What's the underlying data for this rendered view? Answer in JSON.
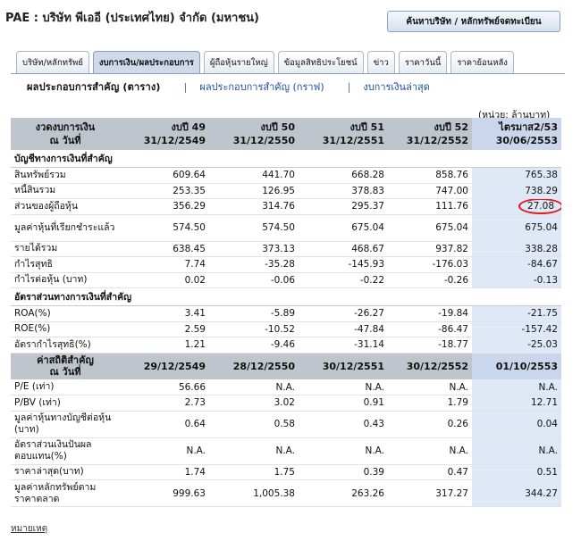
{
  "company_title": "PAE : บริษัท พีเออี (ประเทศไทย) จำกัด (มหาชน)",
  "search_button": "ค้นหาบริษัท / หลักทรัพย์จดทะเบียน",
  "tabs": [
    {
      "label": "บริษัท/หลักทรัพย์",
      "active": false
    },
    {
      "label": "งบการเงิน/ผลประกอบการ",
      "active": true
    },
    {
      "label": "ผู้ถือหุ้นรายใหญ่",
      "active": false
    },
    {
      "label": "ข้อมูลสิทธิประโยชน์",
      "active": false
    },
    {
      "label": "ข่าว",
      "active": false
    },
    {
      "label": "ราคาวันนี้",
      "active": false
    },
    {
      "label": "ราคาย้อนหลัง",
      "active": false
    }
  ],
  "subnav": {
    "current": "ผลประกอบการสำคัญ (ตาราง)",
    "sep1": "|",
    "link1": "ผลประกอบการสำคัญ (กราฟ)",
    "sep2": "|",
    "link2": "งบการเงินล่าสุด"
  },
  "unit_note": "(หน่วย: ล้านบาท)",
  "table": {
    "header": [
      {
        "l1": "งวดงบการเงิน",
        "l2": "ณ วันที่"
      },
      {
        "l1": "งบปี 49",
        "l2": "31/12/2549"
      },
      {
        "l1": "งบปี 50",
        "l2": "31/12/2550"
      },
      {
        "l1": "งบปี 51",
        "l2": "31/12/2551"
      },
      {
        "l1": "งบปี 52",
        "l2": "31/12/2552"
      },
      {
        "l1": "ไตรมาส2/53",
        "l2": "30/06/2553"
      }
    ],
    "section1": "บัญชีทางการเงินที่สำคัญ",
    "rows1": [
      {
        "label": "สินทรัพย์รวม",
        "v": [
          "609.64",
          "441.70",
          "668.28",
          "858.76",
          "765.38"
        ]
      },
      {
        "label": "หนี้สินรวม",
        "v": [
          "253.35",
          "126.95",
          "378.83",
          "747.00",
          "738.29"
        ]
      },
      {
        "label": "ส่วนของผู้ถือหุ้น",
        "v": [
          "356.29",
          "314.76",
          "295.37",
          "111.76",
          "27.08"
        ]
      },
      {
        "label": "มูลค่าหุ้นที่เรียกชำระแล้ว",
        "v": [
          "574.50",
          "574.50",
          "675.04",
          "675.04",
          "675.04"
        ]
      },
      {
        "label": "รายได้รวม",
        "v": [
          "638.45",
          "373.13",
          "468.67",
          "937.82",
          "338.28"
        ]
      },
      {
        "label": "กำไรสุทธิ",
        "v": [
          "7.74",
          "-35.28",
          "-145.93",
          "-176.03",
          "-84.67"
        ]
      },
      {
        "label": "กำไรต่อหุ้น (บาท)",
        "v": [
          "0.02",
          "-0.06",
          "-0.22",
          "-0.26",
          "-0.13"
        ]
      }
    ],
    "section2": "อัตราส่วนทางการเงินที่สำคัญ",
    "rows2": [
      {
        "label": "ROA(%)",
        "v": [
          "3.41",
          "-5.89",
          "-26.27",
          "-19.84",
          "-21.75"
        ]
      },
      {
        "label": "ROE(%)",
        "v": [
          "2.59",
          "-10.52",
          "-47.84",
          "-86.47",
          "-157.42"
        ]
      },
      {
        "label": "อัตรากำไรสุทธิ(%)",
        "v": [
          "1.21",
          "-9.46",
          "-31.14",
          "-18.77",
          "-25.03"
        ]
      }
    ],
    "sub_header": {
      "label_l1": "ค่าสถิติสำคัญ",
      "label_l2": "ณ วันที่",
      "dates": [
        "29/12/2549",
        "28/12/2550",
        "30/12/2551",
        "30/12/2552",
        "01/10/2553"
      ]
    },
    "rows3": [
      {
        "label": "P/E (เท่า)",
        "v": [
          "56.66",
          "N.A.",
          "N.A.",
          "N.A.",
          "N.A."
        ]
      },
      {
        "label": "P/BV (เท่า)",
        "v": [
          "2.73",
          "3.02",
          "0.91",
          "1.79",
          "12.71"
        ]
      },
      {
        "label": "มูลค่าหุ้นทางบัญชีต่อหุ้น (บาท)",
        "v": [
          "0.64",
          "0.58",
          "0.43",
          "0.26",
          "0.04"
        ]
      },
      {
        "label": "อัตราส่วนเงินปันผลตอบแทน(%)",
        "v": [
          "N.A.",
          "N.A.",
          "N.A.",
          "N.A.",
          "N.A."
        ]
      },
      {
        "label": "ราคาล่าสุด(บาท)",
        "v": [
          "1.74",
          "1.75",
          "0.39",
          "0.47",
          "0.51"
        ]
      },
      {
        "label": "มูลค่าหลักทรัพย์ตามราคาตลาด",
        "v": [
          "999.63",
          "1,005.38",
          "263.26",
          "317.27",
          "344.27"
        ]
      }
    ]
  },
  "footnote": "หมายเหตุ",
  "colors": {
    "header_bg": "#bfc5cd",
    "highlight_col": "#dfe8f7",
    "circle": "#e01a1a",
    "link": "#1d4fa1"
  }
}
